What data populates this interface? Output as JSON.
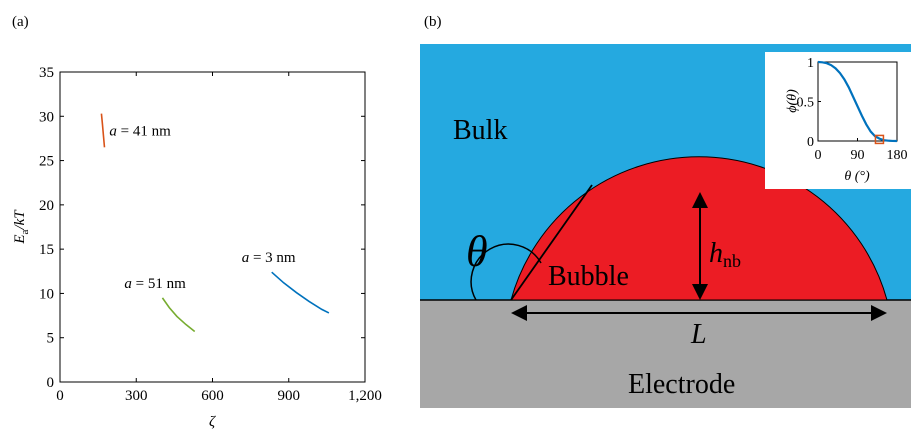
{
  "panel_a": {
    "label": "(a)",
    "ylabel_main": "E",
    "ylabel_sub": "a",
    "ylabel_rest": "/kT",
    "xlabel": "ζ"
  },
  "panel_b": {
    "label": "(b)",
    "bulk_label": "Bulk",
    "bubble_label": "Bubble",
    "electrode_label": "Electrode",
    "theta_label": "θ",
    "h_main": "h",
    "h_sub": "nb",
    "L_label": "L",
    "colors": {
      "bulk": "#25a9e0",
      "bubble": "#ec1c24",
      "electrode": "#a7a7a7"
    },
    "inset": {
      "ylabel": "ϕ(θ)",
      "xlabel": "θ (°)",
      "curve_color": "#0072bd",
      "marker_color": "#d95319",
      "marker": {
        "x": 140,
        "y": 0.02
      }
    }
  },
  "chart_data": [
    {
      "type": "line",
      "xlabel": "ζ",
      "ylabel": "Ea/kT",
      "xlim": [
        0,
        1200
      ],
      "ylim": [
        0,
        35
      ],
      "xticks": [
        "0",
        "300",
        "600",
        "900",
        "1,200"
      ],
      "yticks": [
        "0",
        "5",
        "10",
        "15",
        "20",
        "25",
        "30",
        "35"
      ],
      "grid": false,
      "series": [
        {
          "annotation_lhs": "a",
          "annotation_rhs": "41 nm",
          "color": "#d95319",
          "x": [
            163,
            167,
            171,
            175
          ],
          "y": [
            30.3,
            29.1,
            27.8,
            26.5
          ]
        },
        {
          "annotation_lhs": "a",
          "annotation_rhs": "51 nm",
          "color": "#77ac30",
          "x": [
            403,
            430,
            460,
            495,
            530
          ],
          "y": [
            9.5,
            8.4,
            7.4,
            6.5,
            5.7
          ]
        },
        {
          "annotation_lhs": "a",
          "annotation_rhs": "3 nm",
          "color": "#0072bd",
          "x": [
            833,
            880,
            930,
            980,
            1030,
            1058
          ],
          "y": [
            12.4,
            11.2,
            10.1,
            9.1,
            8.2,
            7.8
          ]
        }
      ]
    },
    {
      "type": "line",
      "xlabel": "θ (°)",
      "ylabel": "ϕ(θ)",
      "xlim": [
        0,
        180
      ],
      "ylim": [
        0,
        1
      ],
      "xticks": [
        "0",
        "90",
        "180"
      ],
      "yticks": [
        "0",
        "0.5",
        "1"
      ],
      "series": [
        {
          "color": "#0072bd",
          "x": [
            0,
            10,
            20,
            30,
            40,
            50,
            60,
            70,
            80,
            90,
            100,
            110,
            120,
            130,
            140,
            150,
            160,
            170,
            180
          ],
          "y": [
            1.0,
            0.996,
            0.985,
            0.96,
            0.92,
            0.86,
            0.78,
            0.68,
            0.56,
            0.44,
            0.32,
            0.21,
            0.12,
            0.06,
            0.03,
            0.01,
            0.004,
            0.001,
            0.0
          ]
        }
      ]
    }
  ]
}
